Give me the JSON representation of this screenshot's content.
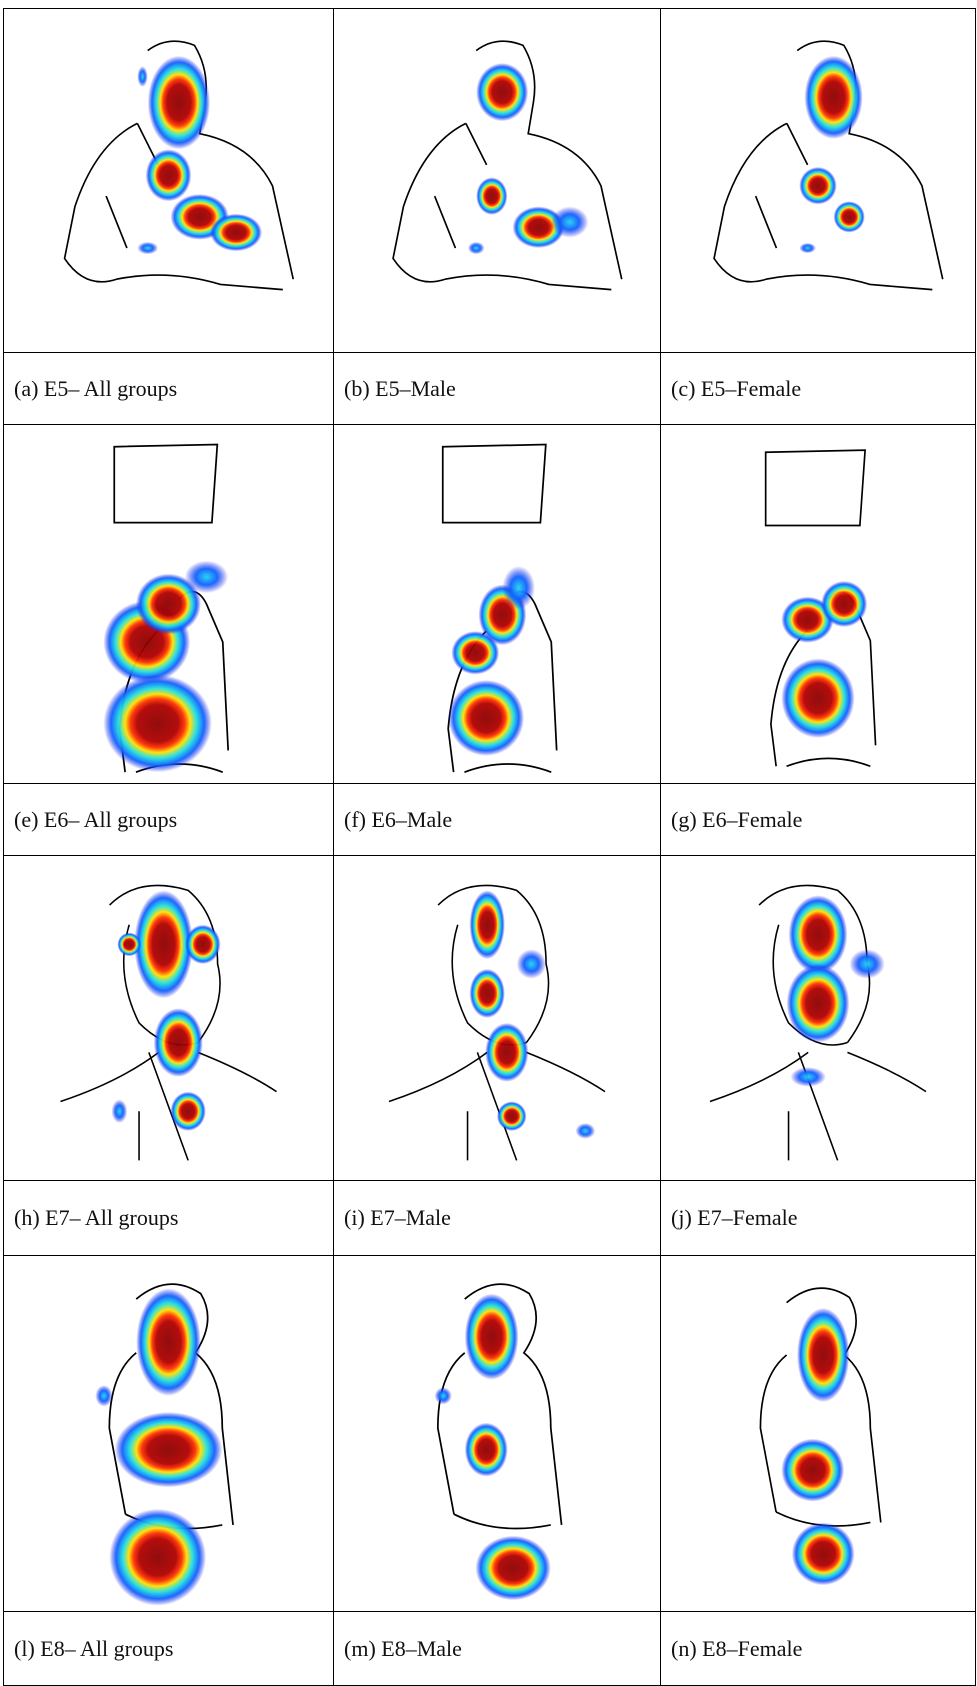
{
  "table": {
    "rows": [
      [
        "(a) E5– All groups",
        "(b) E5–Male",
        "(c) E5–Female"
      ],
      [
        "(e) E6– All groups",
        "(f) E6–Male",
        "(g) E6–Female"
      ],
      [
        "(h) E7– All groups",
        "(i) E7–Male",
        "(j) E7–Female"
      ],
      [
        "(l) E8– All groups",
        "(m) E8–Male",
        "(n) E8–Female"
      ]
    ]
  }
}
